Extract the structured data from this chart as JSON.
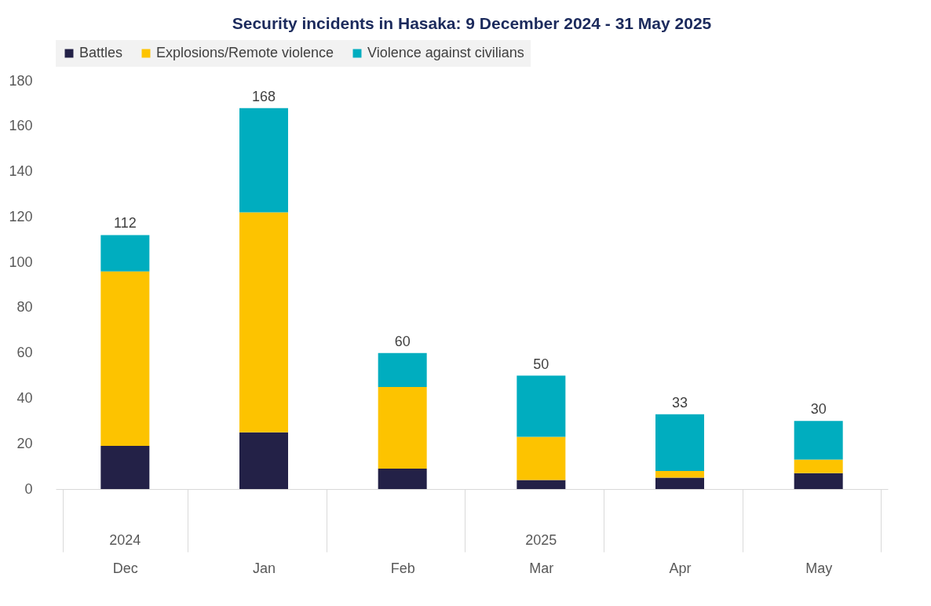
{
  "chart_data": {
    "type": "bar",
    "title": "Security incidents in Hasaka: 9 December 2024 - 31 May 2025",
    "categories": [
      "Dec",
      "Jan",
      "Feb",
      "Mar",
      "Apr",
      "May"
    ],
    "stacked": true,
    "series": [
      {
        "name": "Battles",
        "color": "#232147",
        "values": [
          19,
          25,
          9,
          4,
          5,
          7
        ]
      },
      {
        "name": "Explosions/Remote violence",
        "color": "#fdc300",
        "values": [
          77,
          97,
          36,
          19,
          3,
          6
        ]
      },
      {
        "name": "Violence against civilians",
        "color": "#00adbf",
        "values": [
          16,
          46,
          15,
          27,
          25,
          17
        ]
      }
    ],
    "totals": [
      "112",
      "168",
      "60",
      "50",
      "33",
      "30"
    ],
    "ylim": [
      0,
      180
    ],
    "yticks": [
      0,
      20,
      40,
      60,
      80,
      100,
      120,
      140,
      160,
      180
    ],
    "grid": false,
    "legend": "top",
    "annotations": [
      "2024",
      "2025"
    ]
  }
}
